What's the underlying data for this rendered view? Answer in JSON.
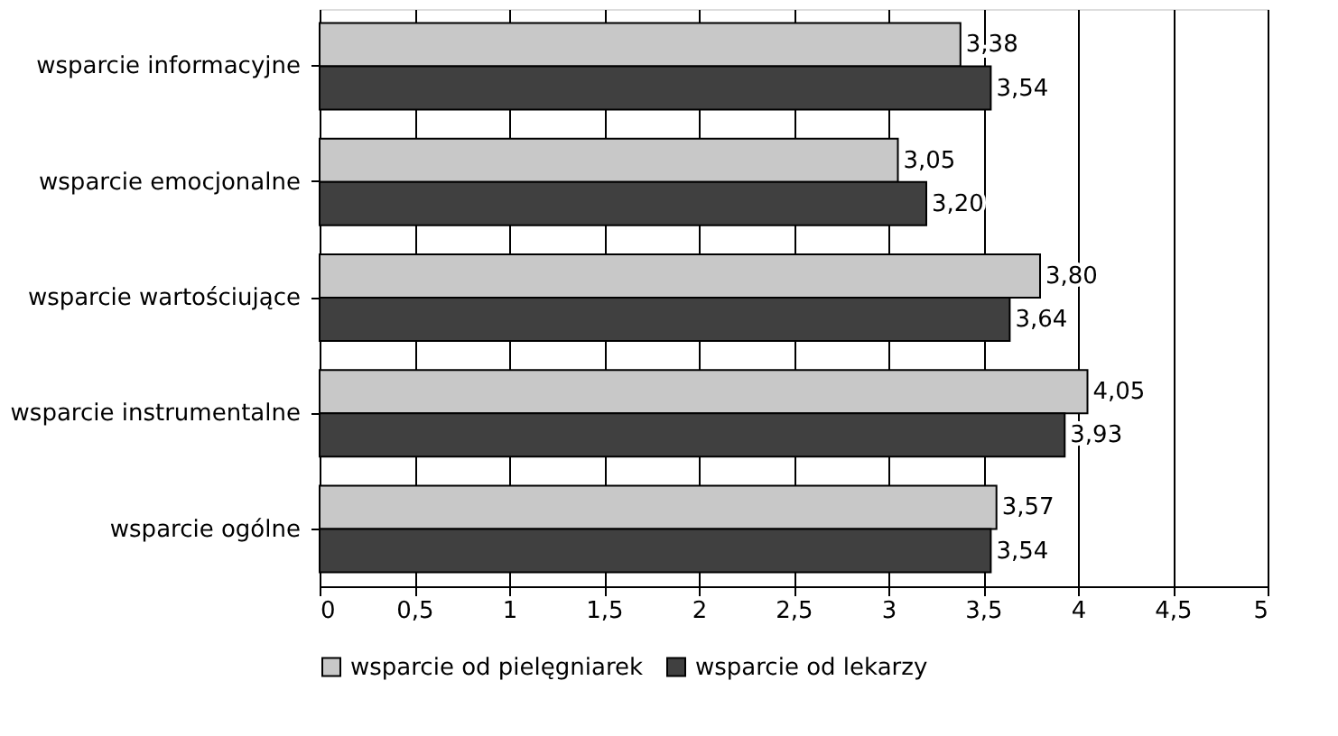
{
  "chart_data": {
    "type": "bar",
    "orientation": "horizontal",
    "categories": [
      "wsparcie informacyjne",
      "wsparcie emocjonalne",
      "wsparcie wartościujące",
      "wsparcie instrumentalne",
      "wsparcie ogólne"
    ],
    "series": [
      {
        "name": "wsparcie od pielęgniarek",
        "color": "#c8c8c8",
        "values": [
          3.38,
          3.05,
          3.8,
          4.05,
          3.57
        ],
        "value_labels": [
          "3,38",
          "3,05",
          "3,80",
          "4,05",
          "3,57"
        ]
      },
      {
        "name": "wsparcie od lekarzy",
        "color": "#404040",
        "values": [
          3.54,
          3.2,
          3.64,
          3.93,
          3.54
        ],
        "value_labels": [
          "3,54",
          "3,20",
          "3,64",
          "3,93",
          "3,54"
        ]
      }
    ],
    "xlim": [
      0,
      5
    ],
    "xticks": [
      0,
      {
        "value": 0.5,
        "label": "0,5"
      },
      1,
      {
        "value": 1.5,
        "label": "1,5"
      },
      2,
      {
        "value": 2.5,
        "label": "2,5"
      },
      3,
      {
        "value": 3.5,
        "label": "3,5"
      },
      4,
      {
        "value": 4.5,
        "label": "4,5"
      },
      5
    ],
    "grid": "x",
    "legend": "bottom"
  }
}
